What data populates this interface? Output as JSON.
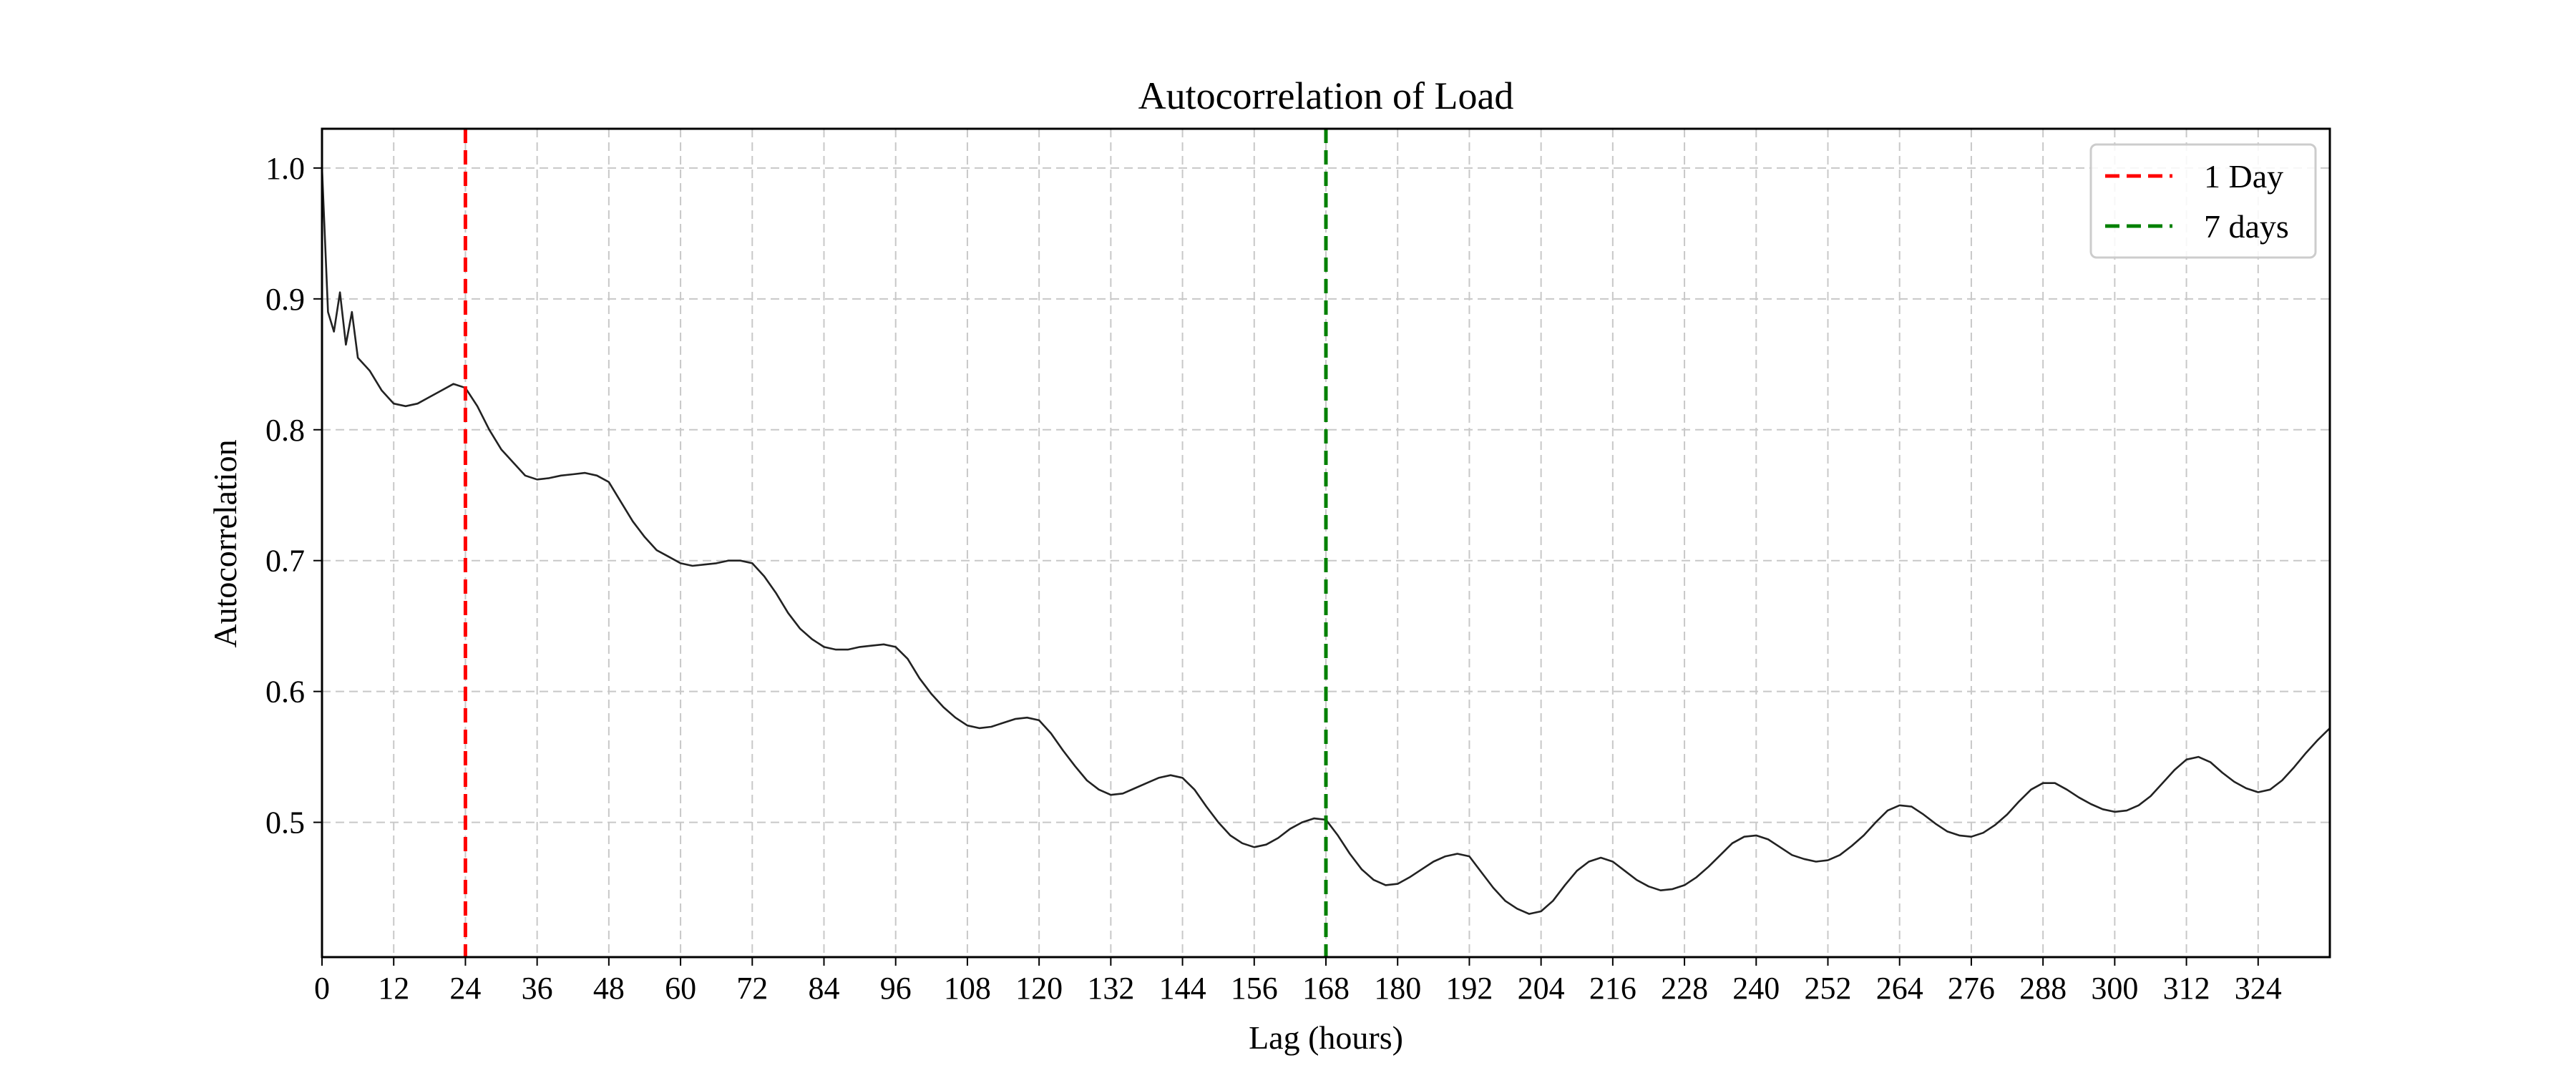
{
  "chart_data": {
    "type": "line",
    "title": "Autocorrelation of Load",
    "xlabel": "Lag (hours)",
    "ylabel": "Autocorrelation",
    "xlim": [
      0,
      336
    ],
    "ylim": [
      0.397,
      1.03
    ],
    "grid": true,
    "legend_position": "top-right",
    "x_ticks": [
      0,
      12,
      24,
      36,
      48,
      60,
      72,
      84,
      96,
      108,
      120,
      132,
      144,
      156,
      168,
      180,
      192,
      204,
      216,
      228,
      240,
      252,
      264,
      276,
      288,
      300,
      312,
      324
    ],
    "x_tick_labels": [
      "0",
      "12",
      "24",
      "36",
      "48",
      "60",
      "72",
      "84",
      "96",
      "108",
      "120",
      "132",
      "144",
      "156",
      "168",
      "180",
      "192",
      "204",
      "216",
      "228",
      "240",
      "252",
      "264",
      "276",
      "288",
      "300",
      "312",
      "324"
    ],
    "y_ticks": [
      0.5,
      0.6,
      0.7,
      0.8,
      0.9,
      1.0
    ],
    "y_tick_labels": [
      "0.5",
      "0.6",
      "0.7",
      "0.8",
      "0.9",
      "1.0"
    ],
    "series": [
      {
        "color": "#222222",
        "x": [
          0,
          1,
          2,
          3,
          4,
          5,
          6,
          8,
          10,
          12,
          14,
          16,
          18,
          20,
          22,
          24,
          26,
          28,
          30,
          32,
          34,
          36,
          38,
          40,
          42,
          44,
          46,
          48,
          50,
          52,
          54,
          56,
          58,
          60,
          62,
          64,
          66,
          68,
          70,
          72,
          74,
          76,
          78,
          80,
          82,
          84,
          86,
          88,
          90,
          92,
          94,
          96,
          98,
          100,
          102,
          104,
          106,
          108,
          110,
          112,
          114,
          116,
          118,
          120,
          122,
          124,
          126,
          128,
          130,
          132,
          134,
          136,
          138,
          140,
          142,
          144,
          146,
          148,
          150,
          152,
          154,
          156,
          158,
          160,
          162,
          164,
          166,
          168,
          170,
          172,
          174,
          176,
          178,
          180,
          182,
          184,
          186,
          188,
          190,
          192,
          194,
          196,
          198,
          200,
          202,
          204,
          206,
          208,
          210,
          212,
          214,
          216,
          218,
          220,
          222,
          224,
          226,
          228,
          230,
          232,
          234,
          236,
          238,
          240,
          242,
          244,
          246,
          248,
          250,
          252,
          254,
          256,
          258,
          260,
          262,
          264,
          266,
          268,
          270,
          272,
          274,
          276,
          278,
          280,
          282,
          284,
          286,
          288,
          290,
          292,
          294,
          296,
          298,
          300,
          302,
          304,
          306,
          308,
          310,
          312,
          314,
          316,
          318,
          320,
          322,
          324,
          326,
          328,
          330,
          332,
          334,
          336
        ],
        "y": [
          1.0,
          0.89,
          0.875,
          0.905,
          0.865,
          0.89,
          0.855,
          0.845,
          0.83,
          0.82,
          0.818,
          0.82,
          0.825,
          0.83,
          0.835,
          0.832,
          0.818,
          0.8,
          0.785,
          0.775,
          0.765,
          0.762,
          0.763,
          0.765,
          0.766,
          0.767,
          0.765,
          0.76,
          0.745,
          0.73,
          0.718,
          0.708,
          0.703,
          0.698,
          0.696,
          0.697,
          0.698,
          0.7,
          0.7,
          0.698,
          0.688,
          0.675,
          0.66,
          0.648,
          0.64,
          0.634,
          0.632,
          0.632,
          0.634,
          0.635,
          0.636,
          0.634,
          0.625,
          0.61,
          0.598,
          0.588,
          0.58,
          0.574,
          0.572,
          0.573,
          0.576,
          0.579,
          0.58,
          0.578,
          0.568,
          0.555,
          0.543,
          0.532,
          0.525,
          0.521,
          0.522,
          0.526,
          0.53,
          0.534,
          0.536,
          0.534,
          0.525,
          0.512,
          0.5,
          0.49,
          0.484,
          0.481,
          0.483,
          0.488,
          0.495,
          0.5,
          0.503,
          0.502,
          0.49,
          0.476,
          0.464,
          0.456,
          0.452,
          0.453,
          0.458,
          0.464,
          0.47,
          0.474,
          0.476,
          0.474,
          0.462,
          0.45,
          0.44,
          0.434,
          0.43,
          0.432,
          0.44,
          0.452,
          0.463,
          0.47,
          0.473,
          0.47,
          0.463,
          0.456,
          0.451,
          0.448,
          0.449,
          0.452,
          0.458,
          0.466,
          0.475,
          0.484,
          0.489,
          0.49,
          0.487,
          0.481,
          0.475,
          0.472,
          0.47,
          0.471,
          0.475,
          0.482,
          0.49,
          0.5,
          0.509,
          0.513,
          0.512,
          0.506,
          0.499,
          0.493,
          0.49,
          0.489,
          0.492,
          0.498,
          0.506,
          0.516,
          0.525,
          0.53,
          0.53,
          0.525,
          0.519,
          0.514,
          0.51,
          0.508,
          0.509,
          0.513,
          0.52,
          0.53,
          0.54,
          0.548,
          0.55,
          0.546,
          0.538,
          0.531,
          0.526,
          0.523,
          0.525,
          0.532,
          0.542,
          0.553,
          0.563,
          0.572
        ]
      }
    ],
    "vlines": [
      {
        "x": 24,
        "color": "#ff0000",
        "label": "1 Day"
      },
      {
        "x": 168,
        "color": "#008000",
        "label": "7 days"
      }
    ],
    "legend": [
      {
        "label": "1 Day",
        "color": "#ff0000"
      },
      {
        "label": "7 days",
        "color": "#008000"
      }
    ]
  }
}
